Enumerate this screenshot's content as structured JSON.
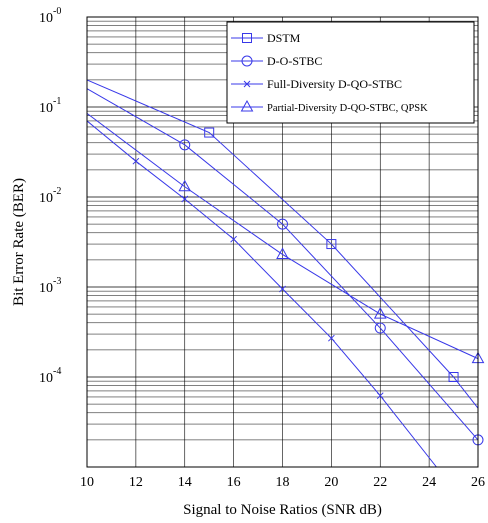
{
  "chart_data": {
    "type": "line",
    "xlabel": "Signal to Noise Ratios (SNR dB)",
    "ylabel": "Bit Error Rate (BER)",
    "xlim": [
      10,
      26
    ],
    "ylim": [
      1e-05,
      1
    ],
    "yscale": "log",
    "grid": true,
    "legend_position": "top-right",
    "x_ticks": [
      "10",
      "12",
      "14",
      "16",
      "18",
      "20",
      "22",
      "24",
      "26"
    ],
    "y_ticks": [
      {
        "base": "10",
        "exp": "-0"
      },
      {
        "base": "10",
        "exp": "-1"
      },
      {
        "base": "10",
        "exp": "-2"
      },
      {
        "base": "10",
        "exp": "-3"
      },
      {
        "base": "10",
        "exp": "-4"
      }
    ],
    "series": [
      {
        "name": "DSTM",
        "marker": "square",
        "x": [
          10,
          15,
          20,
          25,
          26
        ],
        "y": [
          0.2,
          0.052,
          0.003,
          0.0001,
          4.5e-05
        ],
        "markers_at": [
          15,
          20,
          25
        ]
      },
      {
        "name": "D-O-STBC",
        "marker": "circle",
        "x": [
          10,
          14,
          18,
          22,
          26
        ],
        "y": [
          0.16,
          0.038,
          0.005,
          0.00035,
          2e-05
        ],
        "markers_at": [
          14,
          18,
          22,
          26
        ]
      },
      {
        "name": "Full-Diversity D-QO-STBC",
        "marker": "x",
        "x": [
          10,
          12,
          14,
          16,
          18,
          20,
          22,
          24.3
        ],
        "y": [
          0.07,
          0.025,
          0.0095,
          0.0034,
          0.00095,
          0.00027,
          6.2e-05,
          1e-05
        ],
        "markers_at": [
          12,
          14,
          16,
          18,
          20,
          22
        ]
      },
      {
        "name": "Partial-Diversity D-QO-STBC, QPSK",
        "marker": "triangle",
        "x": [
          10,
          14,
          18,
          22,
          26
        ],
        "y": [
          0.085,
          0.013,
          0.0023,
          0.0005,
          0.00016
        ],
        "markers_at": [
          14,
          18,
          22,
          26
        ]
      }
    ]
  },
  "colors": {
    "line": "#3838e8",
    "grid": "#000000",
    "axis": "#000000",
    "background": "#ffffff"
  }
}
